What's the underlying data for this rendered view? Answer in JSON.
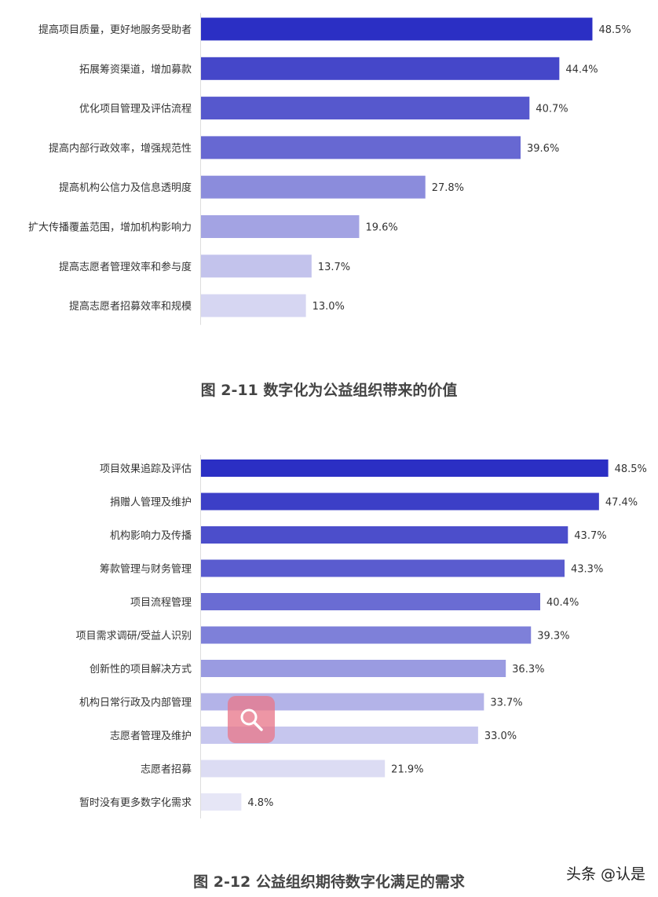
{
  "chart_data": [
    {
      "type": "bar",
      "orientation": "horizontal",
      "title": "图 2-11 数字化为公益组织带来的价值",
      "categories": [
        "提高项目质量，更好地服务受助者",
        "拓展筹资渠道，增加募款",
        "优化项目管理及评估流程",
        "提高内部行政效率，增强规范性",
        "提高机构公信力及信息透明度",
        "扩大传播覆盖范围，增加机构影响力",
        "提高志愿者管理效率和参与度",
        "提高志愿者招募效率和规模"
      ],
      "values": [
        48.5,
        44.4,
        40.7,
        39.6,
        27.8,
        19.6,
        13.7,
        13.0
      ],
      "value_labels": [
        "48.5%",
        "44.4%",
        "40.7%",
        "39.6%",
        "27.8%",
        "19.6%",
        "13.7%",
        "13.0%"
      ],
      "xlim": [
        0,
        54
      ],
      "colors": [
        "#2b2fc4",
        "#4547c9",
        "#5658cd",
        "#6768d2",
        "#8b8cdc",
        "#a3a3e3",
        "#c3c3ec",
        "#d6d6f2"
      ],
      "grid": false,
      "legend": "none"
    },
    {
      "type": "bar",
      "orientation": "horizontal",
      "title": "图 2-12 公益组织期待数字化满足的需求",
      "categories": [
        "项目效果追踪及评估",
        "捐赠人管理及维护",
        "机构影响力及传播",
        "筹款管理与财务管理",
        "项目流程管理",
        "项目需求调研/受益人识别",
        "创新性的项目解决方式",
        "机构日常行政及内部管理",
        "志愿者管理及维护",
        "志愿者招募",
        "暂时没有更多数字化需求"
      ],
      "values": [
        48.5,
        47.4,
        43.7,
        43.3,
        40.4,
        39.3,
        36.3,
        33.7,
        33.0,
        21.9,
        4.8
      ],
      "value_labels": [
        "48.5%",
        "47.4%",
        "43.7%",
        "43.3%",
        "40.4%",
        "39.3%",
        "36.3%",
        "33.7%",
        "33.0%",
        "21.9%",
        "4.8%"
      ],
      "xlim": [
        0,
        50.5
      ],
      "colors": [
        "#2b2fc4",
        "#3c3fc7",
        "#4c4ecb",
        "#5a5ccf",
        "#6a6cd3",
        "#7e80d9",
        "#9a9be1",
        "#b3b3e8",
        "#c6c6ee",
        "#dcdcf3",
        "#e6e6f6"
      ],
      "grid": false,
      "legend": "none"
    }
  ],
  "overlay": {
    "icon": "search-icon",
    "color": "#e8788c"
  },
  "watermark": "头条 @认是"
}
